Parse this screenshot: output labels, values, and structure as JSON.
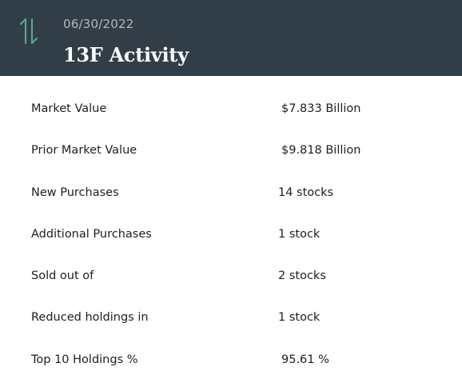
{
  "header": {
    "icon": "up-down-arrows-icon",
    "icon_color": "#5fa88e",
    "background": "#323e47",
    "date": "06/30/2022",
    "title": "13F Activity"
  },
  "rows": [
    {
      "label": "Market Value",
      "value": "$7.833 Billion"
    },
    {
      "label": "Prior Market Value",
      "value": "$9.818 Billion"
    },
    {
      "label": "New Purchases",
      "value": "14 stocks"
    },
    {
      "label": "Additional Purchases",
      "value": "1 stock"
    },
    {
      "label": "Sold out of",
      "value": "2 stocks"
    },
    {
      "label": "Reduced holdings in",
      "value": "1 stock"
    },
    {
      "label": "Top 10 Holdings %",
      "value": "95.61 %"
    }
  ]
}
